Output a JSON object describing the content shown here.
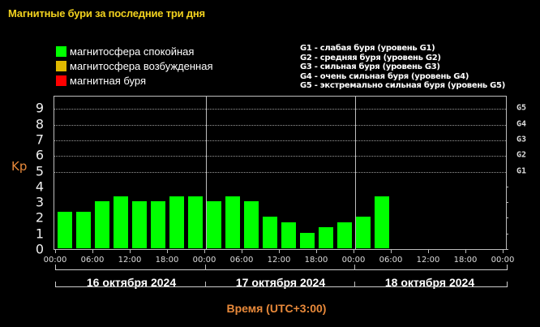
{
  "title": "Магнитные бури за последние три дня",
  "legend": [
    {
      "label": "магнитосфера спокойная",
      "color": "#00ff00"
    },
    {
      "label": "магнитосфера возбужденная",
      "color": "#e0b800"
    },
    {
      "label": "магнитная буря",
      "color": "#ff0000"
    }
  ],
  "g_legend": [
    "G1 - слабая буря (уровень G1)",
    "G2 - средняя буря (уровень G2)",
    "G3 - сильная буря (уровень G3)",
    "G4 - очень сильная буря (уровень G4)",
    "G5 - экстремально сильная буря (уровень G5)"
  ],
  "y_axis_label": "Kp",
  "x_axis_label": "Время (UTC+3:00)",
  "days": [
    "16 октября 2024",
    "17 октября 2024",
    "18 октября 2024"
  ],
  "time_ticks": [
    "00:00",
    "06:00",
    "12:00",
    "18:00",
    "00:00",
    "06:00",
    "12:00",
    "18:00",
    "00:00",
    "06:00",
    "12:00",
    "18:00",
    "00:00"
  ],
  "chart_data": {
    "type": "bar",
    "title": "Магнитные бури за последние три дня",
    "xlabel": "Время (UTC+3:00)",
    "ylabel": "Kp",
    "ylim": [
      0,
      9
    ],
    "yticks": [
      0,
      1,
      2,
      3,
      4,
      5,
      6,
      7,
      8,
      9
    ],
    "right_axis_labels": [
      {
        "value": 5,
        "label": "G1"
      },
      {
        "value": 6,
        "label": "G2"
      },
      {
        "value": 7,
        "label": "G3"
      },
      {
        "value": 8,
        "label": "G4"
      },
      {
        "value": 9,
        "label": "G5"
      }
    ],
    "grid": "dotted horizontal at Kp 5-9",
    "legend_position": "top-left",
    "categories": [
      "16.10 00:00",
      "16.10 03:00",
      "16.10 06:00",
      "16.10 09:00",
      "16.10 12:00",
      "16.10 15:00",
      "16.10 18:00",
      "16.10 21:00",
      "17.10 00:00",
      "17.10 03:00",
      "17.10 06:00",
      "17.10 09:00",
      "17.10 12:00",
      "17.10 15:00",
      "17.10 18:00",
      "17.10 21:00",
      "18.10 00:00",
      "18.10 03:00"
    ],
    "values": [
      2.33,
      2.33,
      3,
      3.33,
      3,
      3,
      3.33,
      3.33,
      3,
      3.33,
      3,
      2,
      1.67,
      1,
      1.33,
      1.67,
      2,
      3.33
    ],
    "bar_colors": [
      "#00ff00"
    ],
    "total_slots": 24
  }
}
